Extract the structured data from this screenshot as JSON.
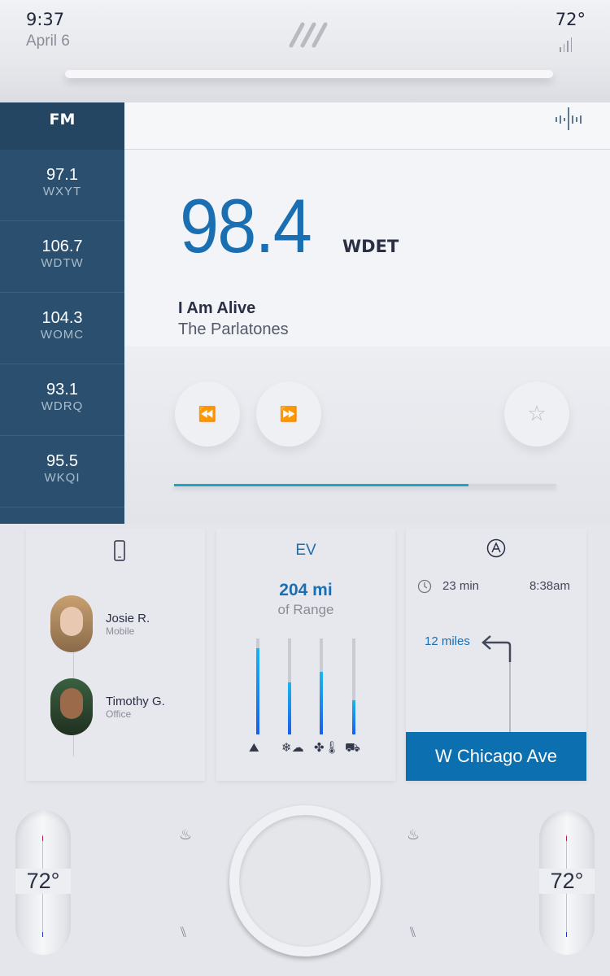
{
  "status": {
    "time": "9:37",
    "date": "April 6",
    "temperature": "72°",
    "signal_icon": "signal-bars-icon"
  },
  "radio": {
    "band": "FM",
    "presets": [
      {
        "freq": "97.1",
        "call": "WXYT"
      },
      {
        "freq": "106.7",
        "call": "WDTW"
      },
      {
        "freq": "104.3",
        "call": "WOMC"
      },
      {
        "freq": "93.1",
        "call": "WDRQ"
      },
      {
        "freq": "95.5",
        "call": "WKQI"
      }
    ],
    "current_freq": "98.4",
    "current_call": "WDET",
    "song": "I Am Alive",
    "artist": "The Parlatones",
    "rewind_icon": "⏪",
    "forward_icon": "⏩",
    "favorite_icon": "☆",
    "progress_percent": 77,
    "accent": "#1ba5c4"
  },
  "phone": {
    "contacts": [
      {
        "name": "Josie R.",
        "type": "Mobile"
      },
      {
        "name": "Timothy G.",
        "type": "Office"
      }
    ]
  },
  "ev": {
    "title": "EV",
    "range": "204 mi",
    "range_label": "of Range",
    "bars_percent": [
      90,
      54,
      65,
      36
    ],
    "bar_icons": [
      "mountain-icon",
      "weather-icon",
      "climate-icon",
      "car-icon"
    ]
  },
  "nav": {
    "duration": "23 min",
    "arrival": "8:38am",
    "distance": "12 miles",
    "street": "W Chicago Ave",
    "accent": "#0b6fb0"
  },
  "climate": {
    "left_temp": "72°",
    "right_temp": "72°"
  }
}
